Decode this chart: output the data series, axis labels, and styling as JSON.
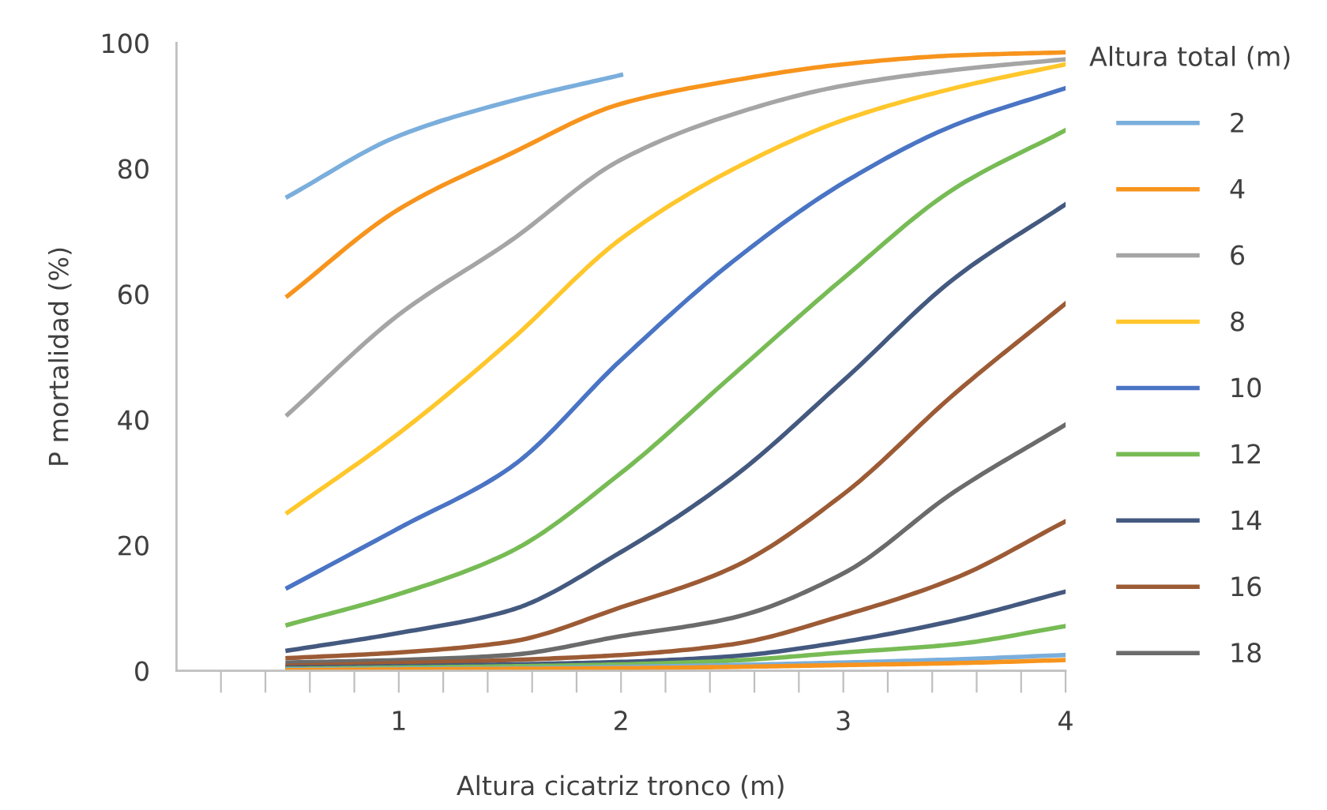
{
  "chart_data": {
    "type": "line",
    "xlabel": "Altura cicatriz tronco (m)",
    "ylabel": "P mortalidad (%)",
    "legend_title": "Altura total (m)",
    "legend": "right",
    "grid": false,
    "marker": "none",
    "line_style": "solid",
    "x": [
      0.5,
      1,
      1.5,
      2,
      2.5,
      3,
      3.5,
      4
    ],
    "xlim": [
      0,
      4
    ],
    "xticks": [
      {
        "value": 0.2,
        "label": null
      },
      {
        "value": 0.4,
        "label": null
      },
      {
        "value": 0.6,
        "label": null
      },
      {
        "value": 0.8,
        "label": null
      },
      {
        "value": 1,
        "label": "1"
      },
      {
        "value": 1.2,
        "label": null
      },
      {
        "value": 1.4,
        "label": null
      },
      {
        "value": 1.6,
        "label": null
      },
      {
        "value": 1.8,
        "label": null
      },
      {
        "value": 2,
        "label": "2"
      },
      {
        "value": 2.2,
        "label": null
      },
      {
        "value": 2.4,
        "label": null
      },
      {
        "value": 2.6,
        "label": null
      },
      {
        "value": 2.8,
        "label": null
      },
      {
        "value": 3,
        "label": "3"
      },
      {
        "value": 3.2,
        "label": null
      },
      {
        "value": 3.4,
        "label": null
      },
      {
        "value": 3.6,
        "label": null
      },
      {
        "value": 3.8,
        "label": null
      },
      {
        "value": 4,
        "label": "4"
      }
    ],
    "ylim": [
      0,
      100
    ],
    "yticks": [
      0,
      20,
      40,
      60,
      80,
      100
    ],
    "series": [
      {
        "name": "2",
        "color": "#7aaedc",
        "values": [
          75.5,
          85.2,
          90.7,
          94.9,
          null,
          null,
          null,
          null
        ]
      },
      {
        "name": "4",
        "color": "#f7941d",
        "values": [
          59.7,
          73.5,
          82.3,
          90.3,
          94.0,
          96.6,
          98.0,
          98.5
        ]
      },
      {
        "name": "6",
        "color": "#a5a5a5",
        "values": [
          40.8,
          56.7,
          68.4,
          81.4,
          88.6,
          93.2,
          95.7,
          97.4
        ]
      },
      {
        "name": "8",
        "color": "#ffc72c",
        "values": [
          25.2,
          37.8,
          52.5,
          68.8,
          79.8,
          87.7,
          92.8,
          96.6
        ]
      },
      {
        "name": "10",
        "color": "#4a74c4",
        "values": [
          13.2,
          22.7,
          32.3,
          49.5,
          65.1,
          77.7,
          86.9,
          92.8
        ]
      },
      {
        "name": "12",
        "color": "#77bb55",
        "values": [
          7.3,
          12.2,
          18.9,
          31.5,
          47.0,
          62.5,
          76.8,
          86.1
        ]
      },
      {
        "name": "14",
        "color": "#44597f",
        "values": [
          3.2,
          6.0,
          9.6,
          18.9,
          30.7,
          46.2,
          62.5,
          74.3
        ]
      },
      {
        "name": "16",
        "color": "#9c5b35",
        "values": [
          2.0,
          2.9,
          4.6,
          10.1,
          16.4,
          28.1,
          44.1,
          58.5
        ]
      },
      {
        "name": "18",
        "color": "#6b6b6b",
        "values": [
          1.3,
          1.7,
          2.5,
          5.5,
          8.4,
          15.5,
          28.5,
          39.2
        ]
      },
      {
        "color": "#9c5b35",
        "values": [
          0.8,
          1.2,
          1.7,
          2.5,
          4.2,
          8.8,
          14.7,
          23.8
        ]
      },
      {
        "color": "#44597f",
        "values": [
          0.5,
          0.7,
          1.0,
          1.4,
          2.3,
          4.6,
          8.0,
          12.6
        ]
      },
      {
        "color": "#77bb55",
        "values": [
          0.3,
          0.5,
          0.7,
          1.0,
          1.6,
          2.9,
          4.2,
          7.1
        ]
      },
      {
        "color": "#7aaedc",
        "values": [
          0.2,
          0.3,
          0.4,
          0.6,
          0.9,
          1.3,
          1.8,
          2.5
        ]
      },
      {
        "color": "#f7941d",
        "values": [
          0.1,
          0.2,
          0.3,
          0.4,
          0.6,
          0.9,
          1.2,
          1.7
        ]
      }
    ]
  }
}
